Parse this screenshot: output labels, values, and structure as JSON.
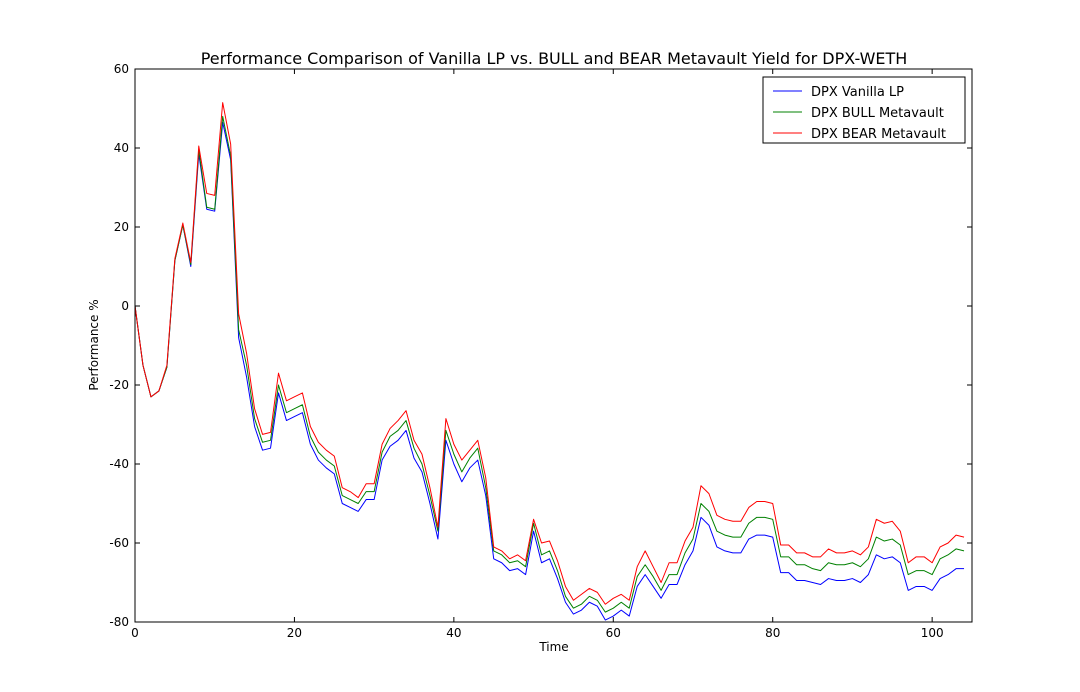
{
  "chart_data": {
    "type": "line",
    "title": "Performance Comparison of Vanilla LP vs. BULL and BEAR Metavault Yield for DPX-WETH",
    "xlabel": "Time",
    "ylabel": "Performance %",
    "xlim": [
      0,
      105
    ],
    "ylim": [
      -80,
      60
    ],
    "xticks": [
      0,
      20,
      40,
      60,
      80,
      100
    ],
    "yticks": [
      -80,
      -60,
      -40,
      -20,
      0,
      20,
      40,
      60
    ],
    "grid": false,
    "legend_position": "top-right",
    "x": [
      0,
      1,
      2,
      3,
      4,
      5,
      6,
      7,
      8,
      9,
      10,
      11,
      12,
      13,
      14,
      15,
      16,
      17,
      18,
      19,
      20,
      21,
      22,
      23,
      24,
      25,
      26,
      27,
      28,
      29,
      30,
      31,
      32,
      33,
      34,
      35,
      36,
      37,
      38,
      39,
      40,
      41,
      42,
      43,
      44,
      45,
      46,
      47,
      48,
      49,
      50,
      51,
      52,
      53,
      54,
      55,
      56,
      57,
      58,
      59,
      60,
      61,
      62,
      63,
      64,
      65,
      66,
      67,
      68,
      69,
      70,
      71,
      72,
      73,
      74,
      75,
      76,
      77,
      78,
      79,
      80,
      81,
      82,
      83,
      84,
      85,
      86,
      87,
      88,
      89,
      90,
      91,
      92,
      93,
      94,
      95,
      96,
      97,
      98,
      99,
      100,
      101,
      102,
      103,
      104
    ],
    "series": [
      {
        "name": "DPX Vanilla LP",
        "color": "#0000ff",
        "values": [
          0,
          -15,
          -23,
          -21.5,
          -15.5,
          11.5,
          20.5,
          10,
          38.5,
          24.5,
          24,
          46.5,
          37,
          -8,
          -18,
          -30.5,
          -36.5,
          -36,
          -22,
          -29,
          -28,
          -27,
          -35,
          -39,
          -41,
          -42.5,
          -50,
          -51,
          -52,
          -49,
          -49,
          -39,
          -35.5,
          -34,
          -31.5,
          -38.5,
          -42,
          -50,
          -59,
          -34,
          -40,
          -44.5,
          -41,
          -39,
          -48,
          -64,
          -65,
          -67,
          -66.5,
          -68,
          -57,
          -65,
          -64,
          -69,
          -75,
          -78,
          -77,
          -75,
          -76,
          -79.5,
          -78.5,
          -77,
          -78.5,
          -71,
          -68,
          -71,
          -74,
          -70.5,
          -70.5,
          -65.5,
          -62,
          -53.5,
          -55.5,
          -61,
          -62,
          -62.5,
          -62.5,
          -59,
          -58,
          -58,
          -58.5,
          -67.5,
          -67.5,
          -69.5,
          -69.5,
          -70,
          -70.5,
          -69,
          -69.5,
          -69.5,
          -69,
          -70,
          -68,
          -63,
          -64,
          -63.5,
          -65,
          -72,
          -71,
          -71,
          -72,
          -69,
          -68,
          -66.5,
          -66.5
        ]
      },
      {
        "name": "DPX BULL Metavault",
        "color": "#008000",
        "values": [
          0,
          -15,
          -23,
          -21.5,
          -15.5,
          11.5,
          20.5,
          10.5,
          39.5,
          25,
          24.5,
          48,
          38,
          -6,
          -15,
          -28.5,
          -34.5,
          -34,
          -20,
          -27,
          -26,
          -25,
          -33,
          -37,
          -39,
          -40.5,
          -48,
          -49,
          -50,
          -47,
          -47,
          -37,
          -33,
          -31.5,
          -29,
          -36,
          -40,
          -48,
          -57,
          -31.5,
          -37.5,
          -42,
          -38.5,
          -36,
          -46,
          -62,
          -63,
          -65,
          -64.5,
          -66,
          -55,
          -63,
          -62,
          -67,
          -73.5,
          -76.5,
          -75.5,
          -73.5,
          -74.5,
          -77.5,
          -76.5,
          -75,
          -76.5,
          -68.5,
          -65.5,
          -68.5,
          -72,
          -68,
          -68,
          -62.5,
          -59,
          -50,
          -52,
          -57,
          -58,
          -58.5,
          -58.5,
          -55,
          -53.5,
          -53.5,
          -54,
          -63.5,
          -63.5,
          -65.5,
          -65.5,
          -66.5,
          -67,
          -65,
          -65.5,
          -65.5,
          -65,
          -66,
          -64,
          -58.5,
          -59.5,
          -59,
          -60.5,
          -68,
          -67,
          -67,
          -68,
          -64,
          -63,
          -61.5,
          -62
        ]
      },
      {
        "name": "DPX BEAR Metavault",
        "color": "#ff0000",
        "values": [
          0,
          -15,
          -23,
          -21.5,
          -15,
          12,
          21,
          11,
          40.5,
          28.5,
          28,
          51.5,
          41,
          -2,
          -12,
          -26,
          -32.5,
          -32,
          -17,
          -24,
          -23,
          -22,
          -30.5,
          -34.5,
          -36.5,
          -38,
          -46,
          -47,
          -48.5,
          -45,
          -45,
          -35,
          -31,
          -29,
          -26.5,
          -34,
          -37.5,
          -46,
          -56,
          -28.5,
          -35,
          -39,
          -36.5,
          -34,
          -43.5,
          -61,
          -62,
          -64,
          -63,
          -64.5,
          -54,
          -60,
          -59.5,
          -64.5,
          -71,
          -74.5,
          -73,
          -71.5,
          -72.5,
          -75.5,
          -74,
          -73,
          -74.5,
          -66,
          -62,
          -66,
          -70,
          -65,
          -65,
          -59.5,
          -56,
          -45.5,
          -47.5,
          -53,
          -54,
          -54.5,
          -54.5,
          -51,
          -49.5,
          -49.5,
          -50,
          -60.5,
          -60.5,
          -62.5,
          -62.5,
          -63.5,
          -63.5,
          -61.5,
          -62.5,
          -62.5,
          -62,
          -63,
          -61,
          -54,
          -55,
          -54.5,
          -57,
          -65,
          -63.5,
          -63.5,
          -65,
          -61,
          -60,
          -58,
          -58.5
        ]
      }
    ]
  }
}
